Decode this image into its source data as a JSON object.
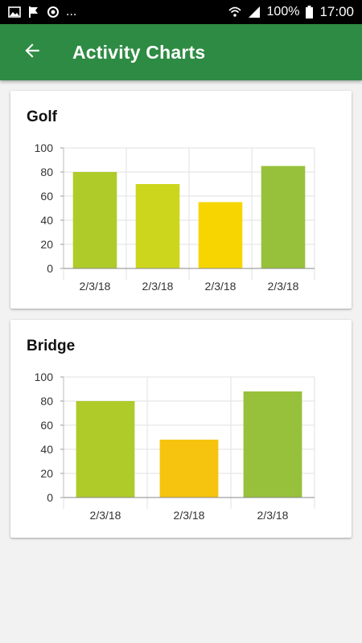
{
  "status_bar": {
    "left_icons": [
      "gallery-icon",
      "flag-icon",
      "sync-icon"
    ],
    "overflow": "...",
    "right_icons": [
      "wifi-icon",
      "signal-icon"
    ],
    "battery": "100%",
    "time": "17:00"
  },
  "app_bar": {
    "title": "Activity Charts",
    "back_icon": "arrow-back-icon",
    "color": "#2e8b43"
  },
  "cards": [
    {
      "title": "Golf",
      "chart_data": {
        "type": "bar",
        "categories": [
          "2/3/18",
          "2/3/18",
          "2/3/18",
          "2/3/18"
        ],
        "values": [
          80,
          70,
          55,
          85
        ],
        "colors": [
          "#aecb2a",
          "#ccd61c",
          "#f7d500",
          "#97c13a"
        ],
        "ylim": [
          0,
          100
        ],
        "yticks": [
          "0",
          "20",
          "40",
          "60",
          "80",
          "100"
        ],
        "grid": true
      }
    },
    {
      "title": "Bridge",
      "chart_data": {
        "type": "bar",
        "categories": [
          "2/3/18",
          "2/3/18",
          "2/3/18"
        ],
        "values": [
          80,
          48,
          88
        ],
        "colors": [
          "#aecb2a",
          "#f6c40f",
          "#97c13a"
        ],
        "ylim": [
          0,
          100
        ],
        "yticks": [
          "0",
          "20",
          "40",
          "60",
          "80",
          "100"
        ],
        "grid": true
      }
    }
  ]
}
